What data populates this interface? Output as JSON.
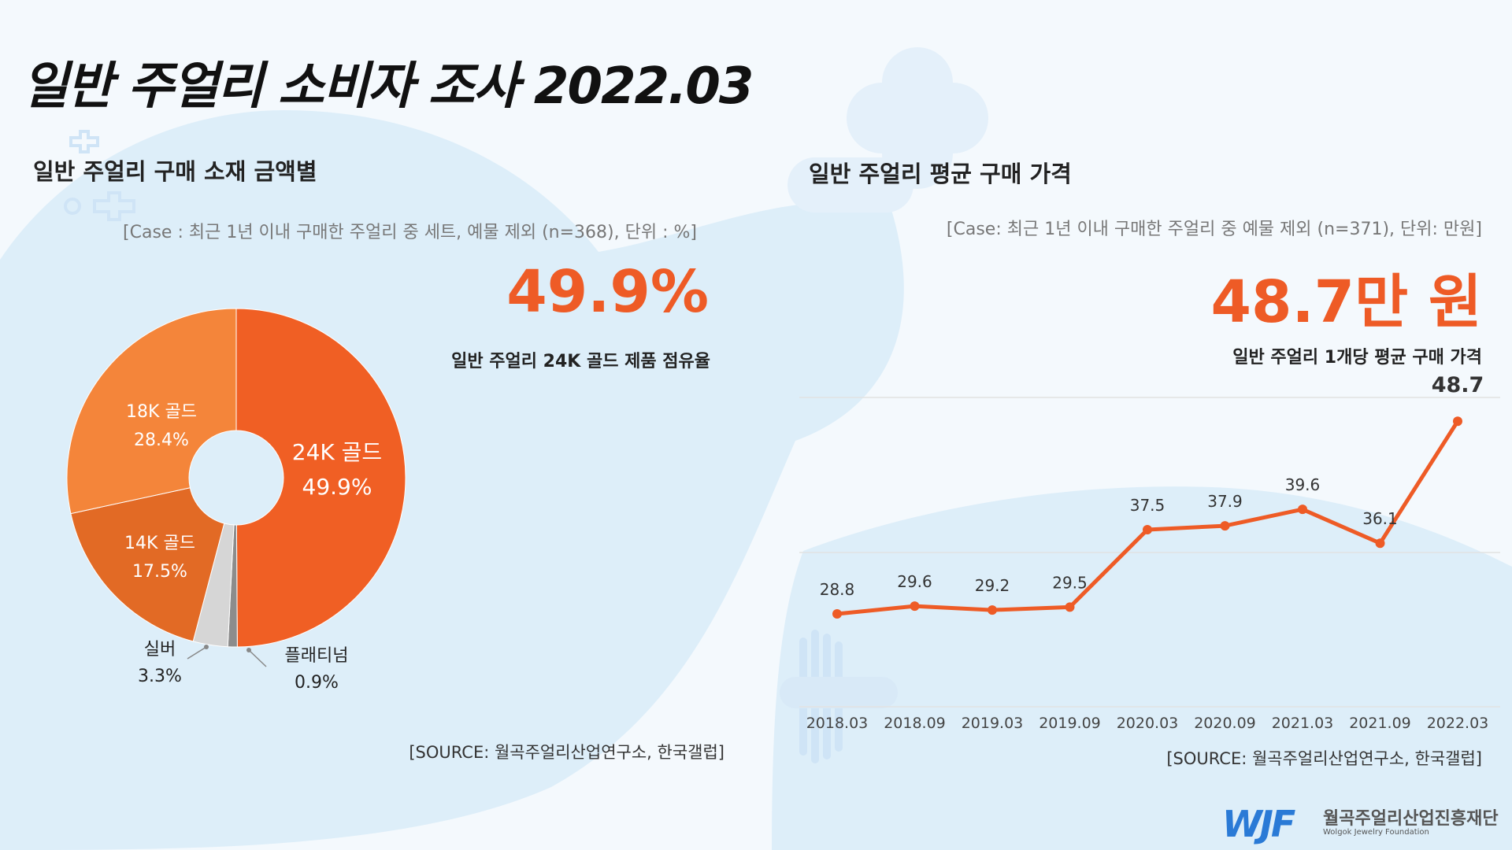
{
  "page": {
    "title": "일반 주얼리 소비자 조사  2022.03",
    "logo": {
      "mark": "WJF",
      "name_ko": "월곡주얼리산업진흥재단",
      "name_en": "Wolgok Jewelry Foundation"
    }
  },
  "left_panel": {
    "subtitle": "일반 주얼리 구매 소재 금액별",
    "case": "[Case : 최근 1년 이내 구매한 주얼리 중 세트, 예물 제외 (n=368), 단위 : %]",
    "highlight": "49.9%",
    "highlight_desc": "일반 주얼리 24K 골드 제품 점유율",
    "source": "[SOURCE: 월곡주얼리산업연구소, 한국갤럽]"
  },
  "right_panel": {
    "subtitle": "일반 주얼리 평균 구매 가격",
    "case": "[Case: 최근 1년 이내 구매한 주얼리 중 예물 제외 (n=371), 단위: 만원]",
    "highlight": "48.7만 원",
    "highlight_desc": "일반 주얼리 1개당 평균 구매 가격",
    "source": "[SOURCE: 월곡주얼리산업연구소, 한국갤럽]"
  },
  "chart_data": [
    {
      "type": "pie",
      "donut": true,
      "series": [
        {
          "name": "24K 골드",
          "value": 49.9,
          "label": "49.9%",
          "color": "#f05f24"
        },
        {
          "name": "플래티넘",
          "value": 0.9,
          "label": "0.9%",
          "color": "#8c8c8c"
        },
        {
          "name": "실버",
          "value": 3.3,
          "label": "3.3%",
          "color": "#d6d6d6"
        },
        {
          "name": "14K 골드",
          "value": 17.5,
          "label": "17.5%",
          "color": "#e26a25"
        },
        {
          "name": "18K 골드",
          "value": 28.4,
          "label": "28.4%",
          "color": "#f4853a"
        }
      ]
    },
    {
      "type": "line",
      "x": [
        "2018.03",
        "2018.09",
        "2019.03",
        "2019.09",
        "2020.03",
        "2020.09",
        "2021.03",
        "2021.09",
        "2022.03"
      ],
      "series": [
        {
          "values": [
            28.8,
            29.6,
            29.2,
            29.5,
            37.5,
            37.9,
            39.6,
            36.1,
            48.7
          ],
          "color": "#ee5b26"
        }
      ],
      "value_labels": [
        "28.8",
        "29.6",
        "29.2",
        "29.5",
        "37.5",
        "37.9",
        "39.6",
        "36.1",
        "48.7"
      ],
      "grid": true
    }
  ]
}
